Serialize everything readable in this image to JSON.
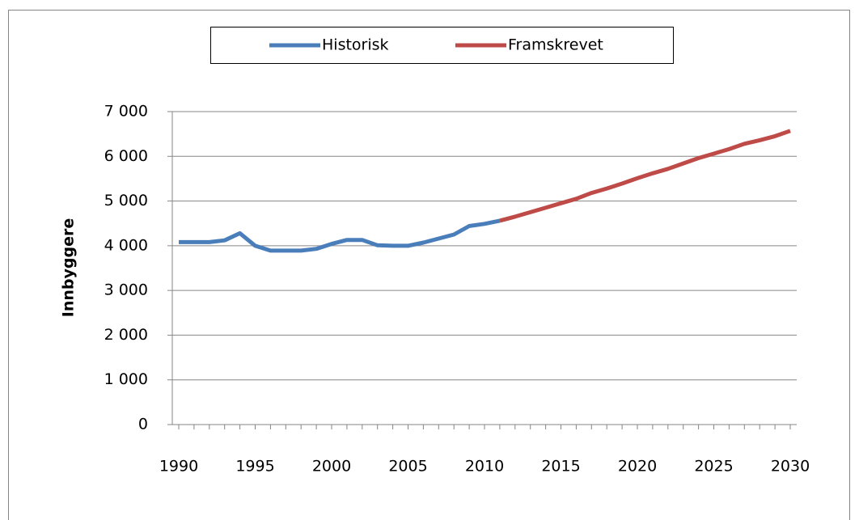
{
  "chart_data": {
    "type": "line",
    "y_label": "Innbyggere",
    "x": [
      1990,
      1991,
      1992,
      1993,
      1994,
      1995,
      1996,
      1997,
      1998,
      1999,
      2000,
      2001,
      2002,
      2003,
      2004,
      2005,
      2006,
      2007,
      2008,
      2009,
      2010,
      2011,
      2012,
      2013,
      2014,
      2015,
      2016,
      2017,
      2018,
      2019,
      2020,
      2021,
      2022,
      2023,
      2024,
      2025,
      2026,
      2027,
      2028,
      2029,
      2030
    ],
    "series": [
      {
        "name": "Historisk",
        "color": "#4a7ebb",
        "values": [
          4080,
          4080,
          4080,
          4120,
          4280,
          4000,
          3890,
          3890,
          3890,
          3930,
          4040,
          4130,
          4130,
          4010,
          4000,
          4000,
          4070,
          4160,
          4250,
          4440,
          4490,
          4560,
          null,
          null,
          null,
          null,
          null,
          null,
          null,
          null,
          null,
          null,
          null,
          null,
          null,
          null,
          null,
          null,
          null,
          null,
          null
        ]
      },
      {
        "name": "Framskrevet",
        "color": "#be4b48",
        "values": [
          null,
          null,
          null,
          null,
          null,
          null,
          null,
          null,
          null,
          null,
          null,
          null,
          null,
          null,
          null,
          null,
          null,
          null,
          null,
          null,
          null,
          4560,
          4650,
          4750,
          4850,
          4950,
          5050,
          5180,
          5280,
          5390,
          5510,
          5620,
          5720,
          5840,
          5960,
          6060,
          6160,
          6280,
          6360,
          6450,
          6570
        ]
      }
    ],
    "xlim": [
      1990,
      2030
    ],
    "xticks": [
      1990,
      1995,
      2000,
      2005,
      2010,
      2015,
      2020,
      2025,
      2030
    ],
    "ylim": [
      0,
      7000
    ],
    "yticks": [
      0,
      {
        "value": 1000,
        "label": "1 000"
      },
      {
        "value": 2000,
        "label": "2 000"
      },
      {
        "value": 3000,
        "label": "3 000"
      },
      {
        "value": 4000,
        "label": "4 000"
      },
      {
        "value": 5000,
        "label": "5 000"
      },
      {
        "value": 6000,
        "label": "6 000"
      },
      {
        "value": 7000,
        "label": "7 000"
      }
    ],
    "grid": true,
    "legend": "top"
  }
}
